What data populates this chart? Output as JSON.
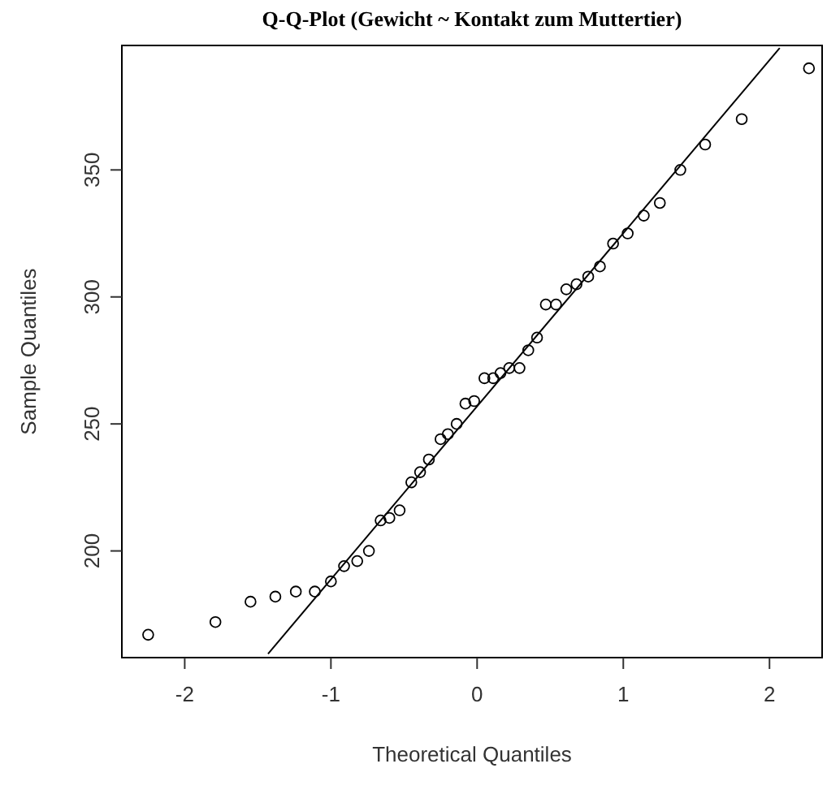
{
  "chart_data": {
    "type": "scatter",
    "title": "Q-Q-Plot (Gewicht ~ Kontakt zum Muttertier)",
    "xlabel": "Theoretical Quantiles",
    "ylabel": "Sample Quantiles",
    "xlim": [
      -2.43,
      2.36
    ],
    "ylim": [
      158,
      399
    ],
    "xticks": [
      -2,
      -1,
      0,
      1,
      2
    ],
    "yticks": [
      200,
      250,
      300,
      350
    ],
    "grid": false,
    "marker": "circle",
    "series": [
      {
        "color": "#000000",
        "x": [
          -2.25,
          -1.79,
          -1.55,
          -1.38,
          -1.24,
          -1.11,
          -1.0,
          -0.91,
          -0.82,
          -0.74,
          -0.66,
          -0.6,
          -0.53,
          -0.45,
          -0.39,
          -0.33,
          -0.25,
          -0.2,
          -0.14,
          -0.08,
          -0.02,
          0.05,
          0.11,
          0.16,
          0.22,
          0.29,
          0.35,
          0.41,
          0.47,
          0.54,
          0.61,
          0.68,
          0.76,
          0.84,
          0.93,
          1.03,
          1.14,
          1.25,
          1.39,
          1.56,
          1.81,
          2.27
        ],
        "values": [
          167,
          172,
          180,
          182,
          184,
          184,
          188,
          194,
          196,
          200,
          212,
          213,
          216,
          227,
          231,
          236,
          244,
          246,
          250,
          258,
          259,
          268,
          268,
          270,
          272,
          272,
          279,
          284,
          297,
          297,
          303,
          305,
          308,
          312,
          321,
          325,
          332,
          337,
          350,
          360,
          370,
          390
        ]
      },
      {
        "type": "line",
        "color": "#000000",
        "x": [
          -1.43,
          2.07
        ],
        "values": [
          159.5,
          398
        ],
        "marker": "none",
        "line_style": "solid"
      }
    ]
  }
}
